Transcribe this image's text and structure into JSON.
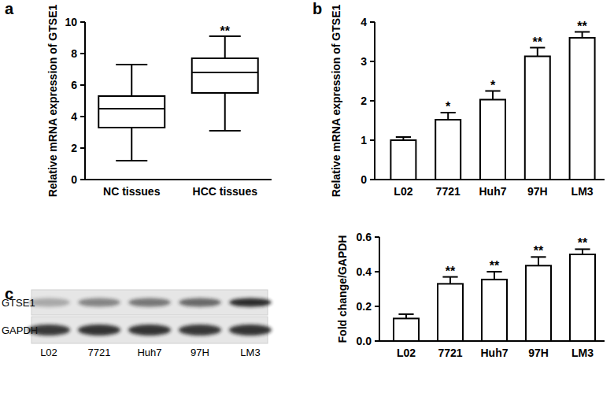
{
  "chart_data": [
    {
      "type": "box",
      "title": "a",
      "y_label": "Relative mRNA expression of GTSE1",
      "categories": [
        "NC tissues",
        "HCC tissues"
      ],
      "min": [
        1.2,
        3.1
      ],
      "q1": [
        3.3,
        5.5
      ],
      "median": [
        4.5,
        6.8
      ],
      "q3": [
        5.3,
        7.7
      ],
      "max": [
        7.3,
        9.1
      ],
      "annotations": [
        null,
        "**"
      ],
      "ylim": [
        0,
        10
      ],
      "yticks": [
        0,
        2,
        4,
        6,
        8,
        10
      ],
      "grid": false,
      "color": "#ffffff"
    },
    {
      "type": "bar",
      "title": "b",
      "y_label": "Relative mRNA expression of GTSE1",
      "categories": [
        "L02",
        "7721",
        "Huh7",
        "97H",
        "LM3"
      ],
      "values": [
        1.0,
        1.52,
        2.03,
        3.13,
        3.6
      ],
      "errors": [
        0.08,
        0.18,
        0.22,
        0.22,
        0.15
      ],
      "annotations": [
        null,
        "*",
        "*",
        "**",
        "**"
      ],
      "ylim": [
        0,
        4
      ],
      "yticks": [
        0,
        1,
        2,
        3,
        4
      ],
      "grid": false,
      "color": "#ffffff"
    },
    {
      "type": "bar",
      "y_label": "Fold change/GAPDH",
      "categories": [
        "L02",
        "7721",
        "Huh7",
        "97H",
        "LM3"
      ],
      "values": [
        0.13,
        0.33,
        0.355,
        0.435,
        0.5
      ],
      "errors": [
        0.025,
        0.04,
        0.045,
        0.05,
        0.03
      ],
      "annotations": [
        null,
        "**",
        "**",
        "**",
        "**"
      ],
      "ylim": [
        0,
        0.6
      ],
      "yticks": [
        {
          "value": 0,
          "label": "0.0"
        },
        0.2,
        0.4,
        0.6
      ],
      "grid": false,
      "color": "#ffffff"
    }
  ],
  "blot": {
    "title": "c",
    "rows": [
      "GTSE1",
      "GAPDH"
    ],
    "lanes": [
      "L02",
      "7721",
      "Huh7",
      "97H",
      "LM3"
    ]
  }
}
